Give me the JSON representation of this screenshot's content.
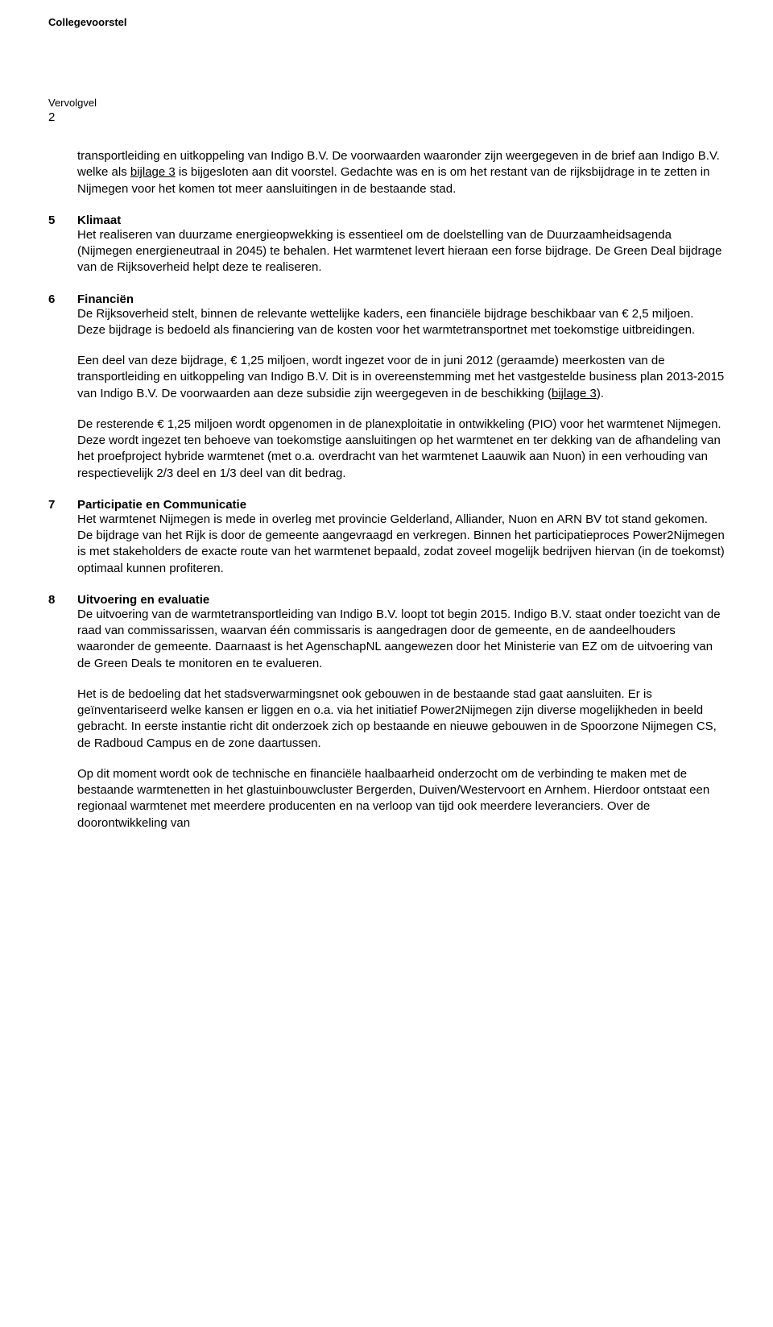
{
  "header": {
    "doc_type": "Collegevoorstel",
    "vervolgvel_label": "Vervolgvel",
    "page_number": "2"
  },
  "intro": {
    "text_before_link": "transportleiding en uitkoppeling van Indigo B.V. De voorwaarden waaronder zijn weergegeven in de brief aan Indigo B.V. welke als ",
    "link_text": "bijlage 3",
    "text_after_link": " is bijgesloten aan dit voorstel. Gedachte was en is om het restant van de rijksbijdrage in te zetten in Nijmegen voor het komen tot meer aansluitingen in de bestaande stad."
  },
  "sections": {
    "s5": {
      "num": "5",
      "title": "Klimaat",
      "body": "Het realiseren van duurzame energieopwekking is essentieel om de doelstelling van de Duurzaamheidsagenda (Nijmegen energieneutraal in 2045) te behalen. Het warmtenet levert hieraan een forse bijdrage. De Green Deal bijdrage van de Rijksoverheid helpt deze te realiseren."
    },
    "s6": {
      "num": "6",
      "title": "Financiën",
      "body": "De Rijksoverheid stelt, binnen de relevante wettelijke kaders, een financiële bijdrage beschikbaar van € 2,5 miljoen. Deze bijdrage is bedoeld als financiering van de kosten voor het warmtetransportnet met toekomstige uitbreidingen.",
      "para2_before": "Een deel van deze bijdrage, € 1,25 miljoen, wordt ingezet voor de in juni 2012 (geraamde) meerkosten van de transportleiding en uitkoppeling van Indigo B.V. Dit is in overeenstemming met het vastgestelde business plan 2013-2015 van Indigo B.V. De voorwaarden aan deze subsidie zijn weergegeven in de beschikking (",
      "para2_link": "bijlage 3",
      "para2_after": ").",
      "para3": "De resterende € 1,25 miljoen wordt opgenomen in de planexploitatie in ontwikkeling (PIO) voor het warmtenet Nijmegen. Deze wordt ingezet ten behoeve van toekomstige aansluitingen op het warmtenet en ter dekking van de afhandeling van het proefproject hybride warmtenet (met o.a. overdracht van het warmtenet Laauwik aan Nuon) in een verhouding van respectievelijk 2/3 deel en 1/3 deel van dit bedrag."
    },
    "s7": {
      "num": "7",
      "title": "Participatie en Communicatie",
      "body": "Het warmtenet Nijmegen is mede in overleg met provincie Gelderland, Alliander, Nuon en ARN BV tot stand gekomen. De bijdrage van het Rijk is door de gemeente aangevraagd en verkregen. Binnen het participatieproces Power2Nijmegen is met stakeholders de exacte route van het warmtenet bepaald, zodat zoveel mogelijk bedrijven hiervan (in de toekomst) optimaal kunnen profiteren."
    },
    "s8": {
      "num": "8",
      "title": "Uitvoering en evaluatie",
      "body": "De uitvoering van de warmtetransportleiding van Indigo B.V. loopt tot begin 2015. Indigo B.V. staat onder toezicht van de raad van commissarissen, waarvan één commissaris is aangedragen door de gemeente, en de aandeelhouders waaronder de gemeente. Daarnaast is het AgenschapNL aangewezen door het Ministerie van EZ om de uitvoering van de Green Deals te monitoren en te evalueren.",
      "para2": "Het is de bedoeling dat het stadsverwarmingsnet ook gebouwen in de bestaande stad gaat aansluiten. Er is geïnventariseerd welke kansen er liggen en o.a. via het initiatief Power2Nijmegen zijn diverse mogelijkheden in beeld gebracht. In eerste instantie richt dit onderzoek zich op bestaande en nieuwe gebouwen in de Spoorzone Nijmegen CS, de Radboud Campus en de zone daartussen.",
      "para3": "Op dit moment wordt ook de technische en financiële haalbaarheid onderzocht om de verbinding te maken met de bestaande warmtenetten in het glastuinbouwcluster Bergerden, Duiven/Westervoort en Arnhem. Hierdoor ontstaat een regionaal warmtenet met meerdere producenten en na verloop van tijd ook meerdere leveranciers. Over de doorontwikkeling van"
    }
  },
  "style": {
    "font_family": "Arial",
    "body_font_size_pt": 11,
    "header_font_size_pt": 10,
    "text_color": "#000000",
    "background_color": "#ffffff",
    "link_color": "#000000"
  }
}
